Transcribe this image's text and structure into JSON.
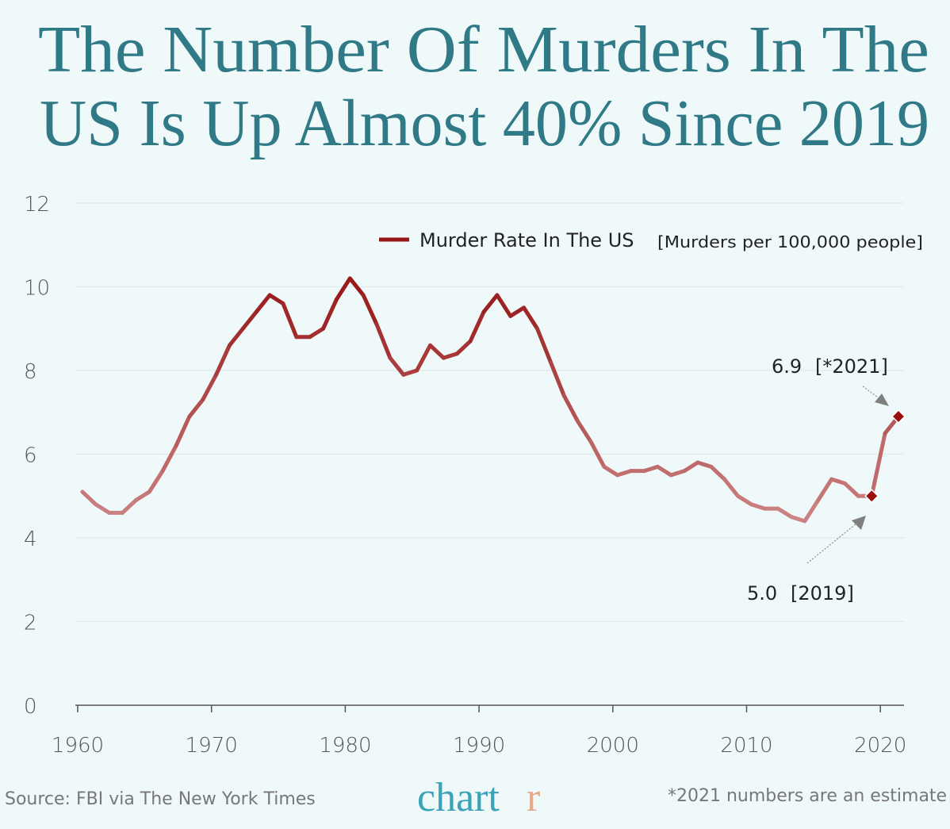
{
  "title_lines": [
    "The Number Of Murders In The",
    "US Is Up Almost 40% Since 2019"
  ],
  "footer": {
    "source": "Source: FBI via The New York Times",
    "logo_main": "chart",
    "logo_last": "r",
    "note": "*2021 numbers are an estimate"
  },
  "colors": {
    "title": "#2f7a86",
    "line_dark": "#961515",
    "line_light": "#cc8585",
    "marker": "#9b0f0f",
    "logo": "#3aa3b5",
    "logo_accent": "#e8a98a",
    "background": "#f0f9fa"
  },
  "chart_data": {
    "type": "line",
    "xlim": [
      1960,
      2021
    ],
    "ylim": [
      0,
      12
    ],
    "x_ticks": [
      "1960",
      "1970",
      "1980",
      "1990",
      "2000",
      "2010",
      "2020"
    ],
    "y_ticks": [
      "0",
      "2",
      "4",
      "6",
      "8",
      "10",
      "12"
    ],
    "grid": true,
    "legend_position": "top-right",
    "series": [
      {
        "name": "Murder Rate In The US",
        "unit": "[Murders per 100,000 people]",
        "x": [
          1960,
          1961,
          1962,
          1963,
          1964,
          1965,
          1966,
          1967,
          1968,
          1969,
          1970,
          1971,
          1972,
          1973,
          1974,
          1975,
          1976,
          1977,
          1978,
          1979,
          1980,
          1981,
          1982,
          1983,
          1984,
          1985,
          1986,
          1987,
          1988,
          1989,
          1990,
          1991,
          1992,
          1993,
          1994,
          1995,
          1996,
          1997,
          1998,
          1999,
          2000,
          2001,
          2002,
          2003,
          2004,
          2005,
          2006,
          2007,
          2008,
          2009,
          2010,
          2011,
          2012,
          2013,
          2014,
          2015,
          2016,
          2017,
          2018,
          2019,
          2020,
          2021
        ],
        "values": [
          5.1,
          4.8,
          4.6,
          4.6,
          4.9,
          5.1,
          5.6,
          6.2,
          6.9,
          7.3,
          7.9,
          8.6,
          9.0,
          9.4,
          9.8,
          9.6,
          8.8,
          8.8,
          9.0,
          9.7,
          10.2,
          9.8,
          9.1,
          8.3,
          7.9,
          8.0,
          8.6,
          8.3,
          8.4,
          8.7,
          9.4,
          9.8,
          9.3,
          9.5,
          9.0,
          8.2,
          7.4,
          6.8,
          6.3,
          5.7,
          5.5,
          5.6,
          5.6,
          5.7,
          5.5,
          5.6,
          5.8,
          5.7,
          5.4,
          5.0,
          4.8,
          4.7,
          4.7,
          4.5,
          4.4,
          4.9,
          5.4,
          5.3,
          5.0,
          5.0,
          6.5,
          6.9
        ]
      }
    ],
    "annotations": [
      {
        "value": "6.9",
        "label": "[*2021]",
        "year": 2021,
        "y": 6.9
      },
      {
        "value": "5.0",
        "label": "[2019]",
        "year": 2019,
        "y": 5.0
      }
    ]
  }
}
